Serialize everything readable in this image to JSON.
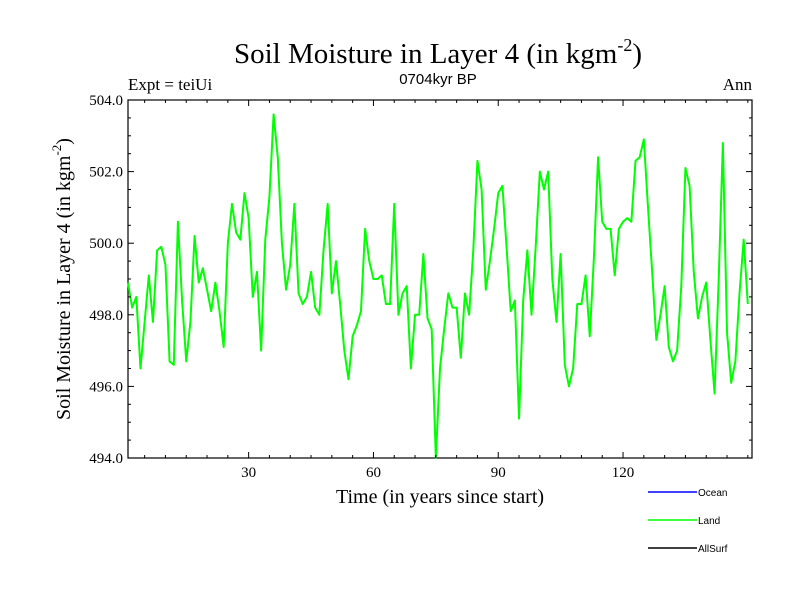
{
  "header": {
    "title_main": "Soil Moisture in Layer 4 (in kgm",
    "title_sup": "-2",
    "title_close": ")",
    "subtitle": "0704kyr BP",
    "left_label": "Expt = teiUi",
    "right_label": "Ann"
  },
  "chart_data": {
    "type": "line",
    "title": "Soil Moisture in Layer 4 (in kgm-2)",
    "subtitle": "0704kyr BP",
    "xlabel": "Time (in years since start)",
    "ylabel_main": "Soil Moisture in Layer 4 (in kgm",
    "ylabel_sup": "-2",
    "ylabel_close": ")",
    "xlim": [
      1,
      151
    ],
    "ylim": [
      494.0,
      504.0
    ],
    "x_ticks": [
      30,
      60,
      90,
      120
    ],
    "x_tick_labels": [
      "30",
      "60",
      "90",
      "120"
    ],
    "y_ticks": [
      494,
      496,
      498,
      500,
      502,
      504
    ],
    "y_tick_labels": [
      "494.0",
      "496.0",
      "498.0",
      "500.0",
      "502.0",
      "504.0"
    ],
    "legend": [
      {
        "name": "Ocean",
        "color": "#0000ff"
      },
      {
        "name": "Land",
        "color": "#00ff00"
      },
      {
        "name": "AllSurf",
        "color": "#000000"
      }
    ],
    "series": [
      {
        "name": "Land",
        "color": "#00ff00",
        "x_start": 1,
        "x_step": 1,
        "values": [
          498.9,
          498.2,
          498.5,
          496.5,
          497.8,
          499.1,
          497.8,
          499.8,
          499.9,
          499.4,
          496.7,
          496.6,
          500.6,
          498.4,
          496.7,
          497.8,
          500.2,
          498.9,
          499.3,
          498.7,
          498.1,
          498.9,
          498.1,
          497.1,
          500.0,
          501.1,
          500.3,
          500.1,
          501.4,
          500.7,
          498.5,
          499.2,
          497.0,
          500.1,
          501.3,
          503.6,
          502.4,
          500.0,
          498.7,
          499.4,
          501.1,
          498.6,
          498.3,
          498.5,
          499.2,
          498.2,
          498.0,
          499.8,
          501.1,
          498.6,
          499.5,
          498.3,
          497.0,
          496.2,
          497.4,
          497.7,
          498.1,
          500.4,
          499.5,
          499.0,
          499.0,
          499.1,
          498.3,
          498.3,
          501.1,
          498.0,
          498.6,
          498.8,
          496.5,
          498.0,
          498.0,
          499.7,
          497.9,
          497.6,
          494.0,
          496.5,
          497.6,
          498.6,
          498.2,
          498.2,
          496.8,
          498.6,
          498.0,
          499.8,
          502.3,
          501.5,
          498.7,
          499.5,
          500.4,
          501.4,
          501.6,
          499.9,
          498.1,
          498.4,
          495.1,
          498.4,
          499.8,
          498.0,
          499.9,
          502.0,
          501.5,
          502.0,
          499.0,
          497.8,
          499.7,
          496.6,
          496.0,
          496.5,
          498.3,
          498.3,
          499.1,
          497.4,
          499.6,
          502.4,
          500.6,
          500.4,
          500.4,
          499.1,
          500.4,
          500.6,
          500.7,
          500.6,
          502.3,
          502.4,
          502.9,
          501.0,
          499.2,
          497.3,
          498.0,
          498.8,
          497.1,
          496.7,
          497.0,
          498.8,
          502.1,
          501.6,
          499.2,
          497.9,
          498.5,
          498.9,
          497.3,
          495.8,
          499.0,
          502.8,
          497.5,
          496.1,
          496.7,
          498.6,
          500.1,
          498.3
        ]
      }
    ]
  }
}
